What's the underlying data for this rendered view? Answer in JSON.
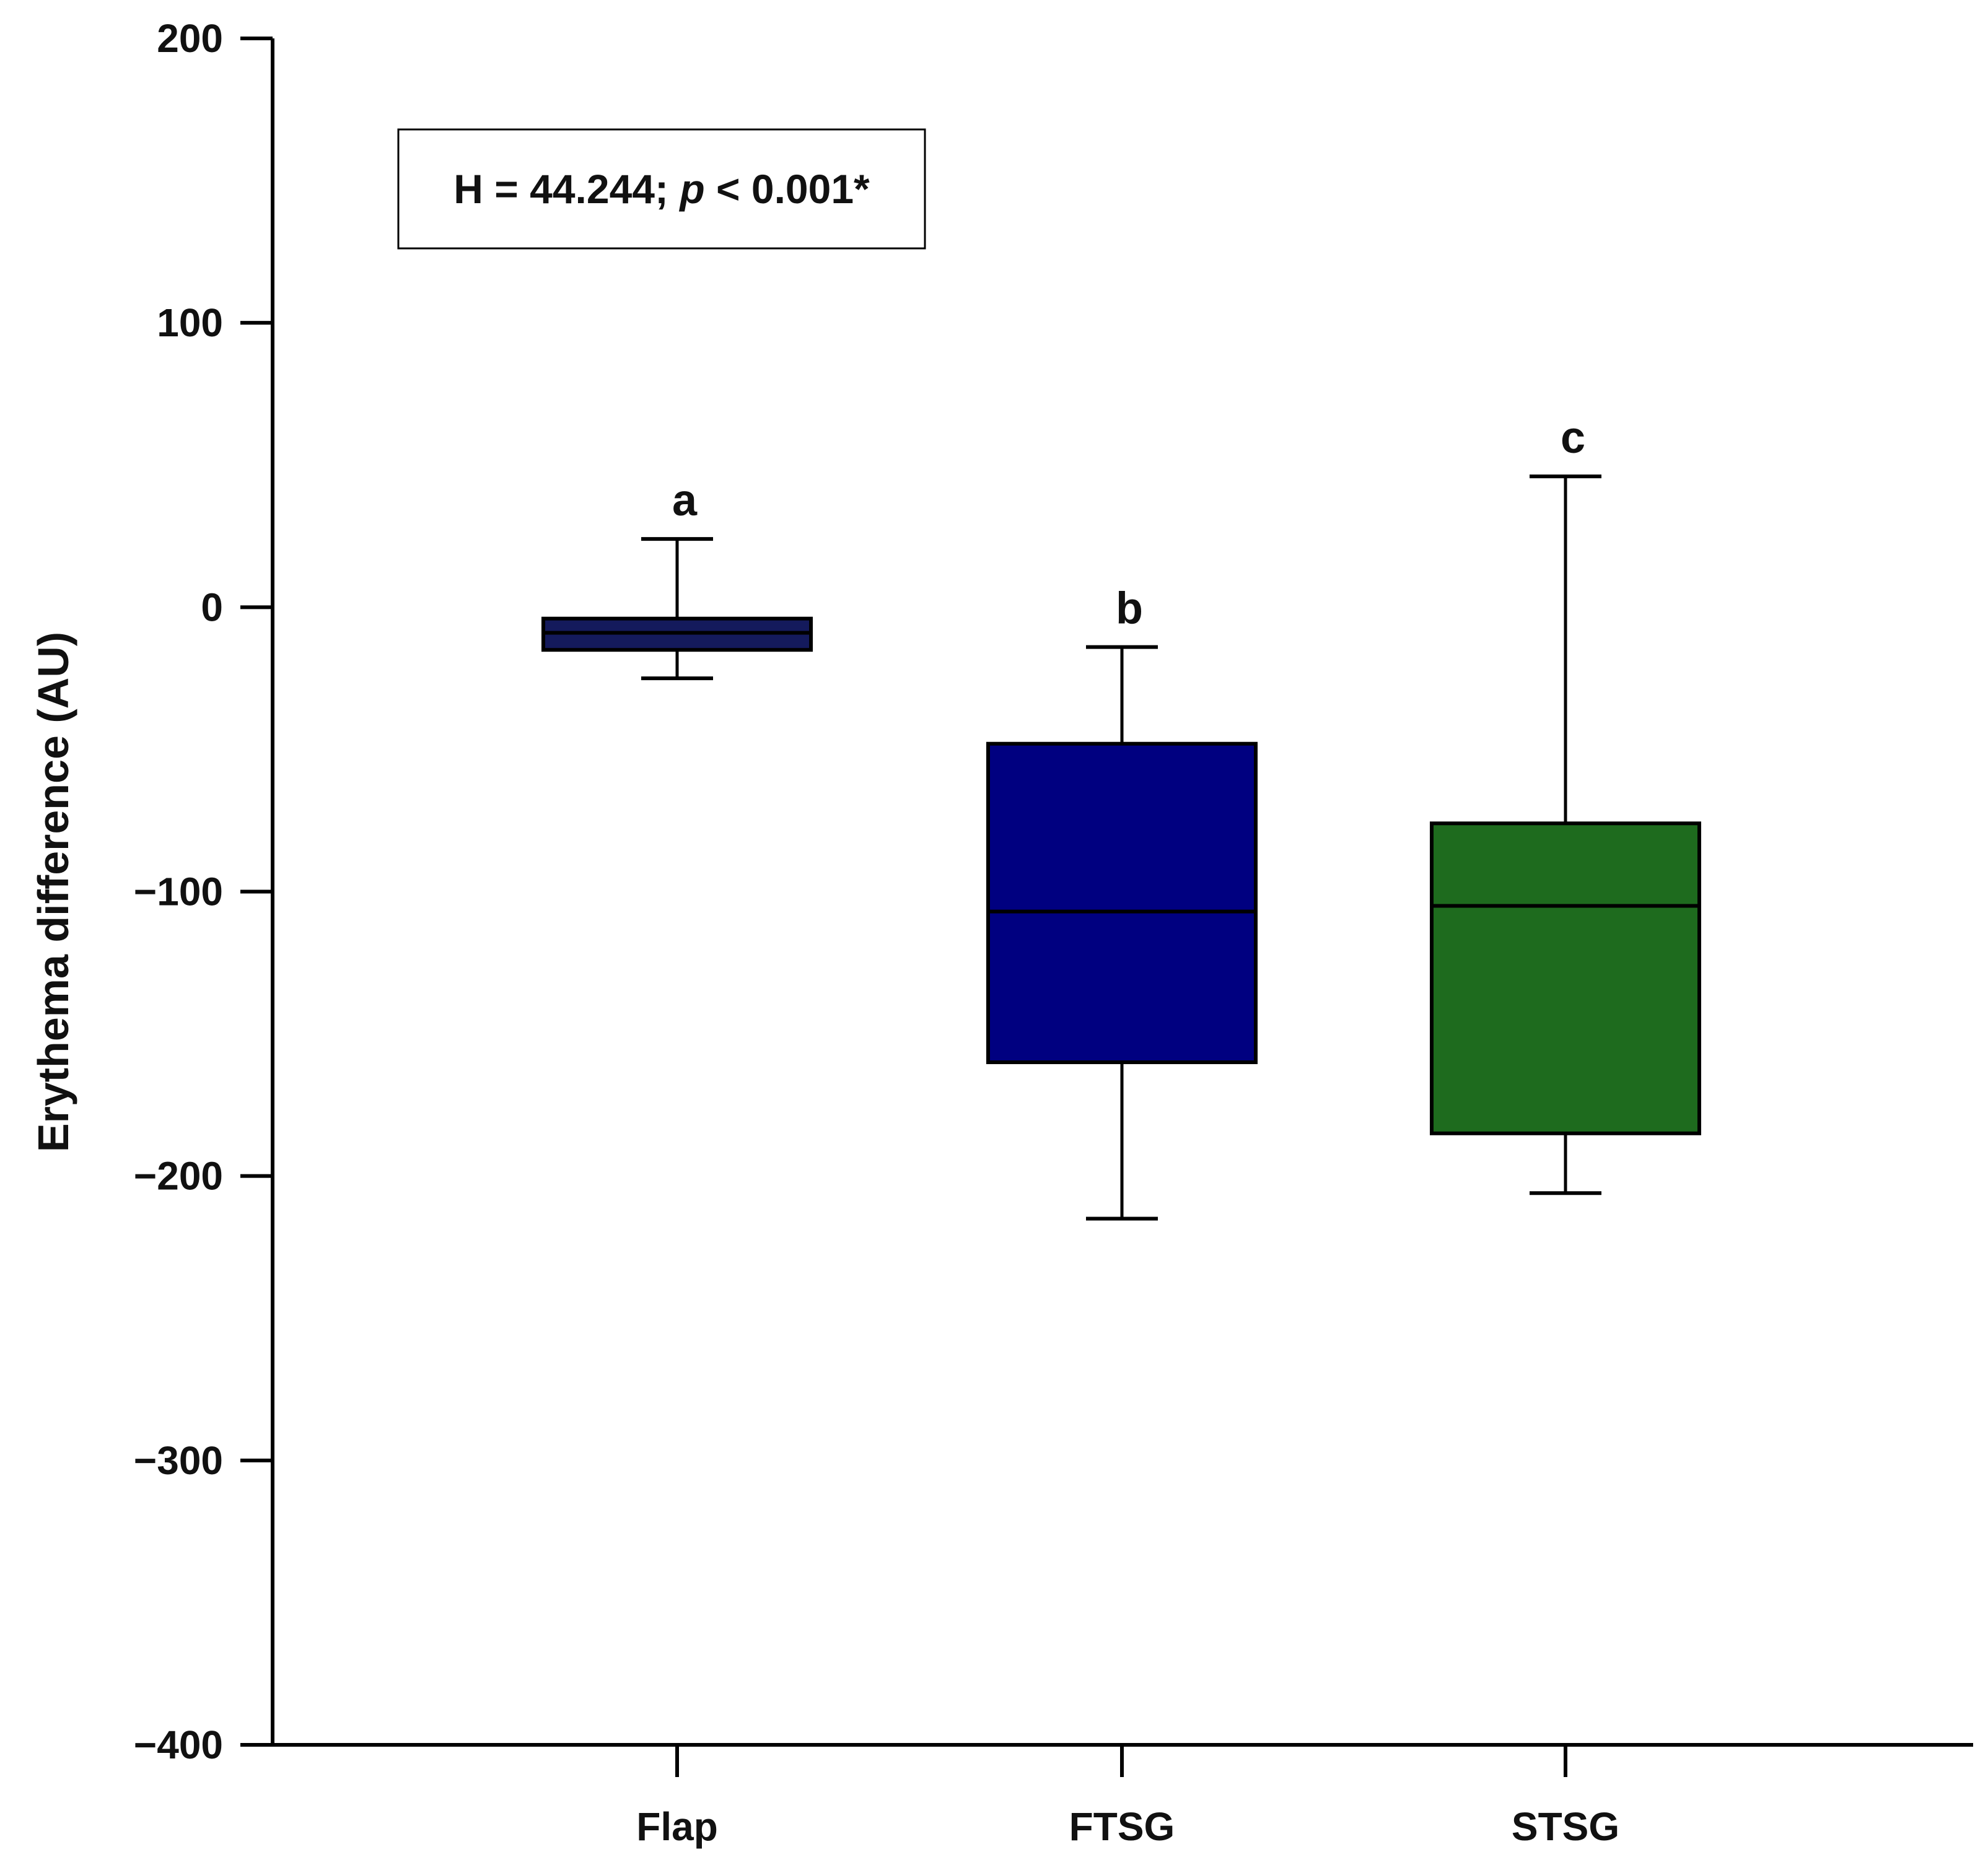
{
  "chart_data": {
    "type": "box",
    "ylabel": "Erythema difference (AU)",
    "ylim": [
      -400,
      200
    ],
    "y_ticks": [
      200,
      100,
      0,
      -100,
      -200,
      -300,
      -400
    ],
    "y_tick_labels": [
      "200",
      "100",
      "0",
      "−100",
      "−200",
      "−300",
      "−400"
    ],
    "grid": false,
    "annotation": {
      "prefix": "H = 44.244; ",
      "italic": "p",
      "suffix": " < 0.001*"
    },
    "categories": [
      "Flap",
      "FTSG",
      "STSG"
    ],
    "boxes": [
      {
        "category": "Flap",
        "whisker_low": -25,
        "q1": -15,
        "median": -9,
        "q3": -4,
        "whisker_high": 24,
        "color": "#141a5c",
        "label": "a"
      },
      {
        "category": "FTSG",
        "whisker_low": -215,
        "q1": -160,
        "median": -107,
        "q3": -48,
        "whisker_high": -14,
        "color": "#000080",
        "label": "b"
      },
      {
        "category": "STSG",
        "whisker_low": -206,
        "q1": -185,
        "median": -105,
        "q3": -76,
        "whisker_high": 46,
        "color": "#1e6b1e",
        "label": "c"
      }
    ]
  }
}
